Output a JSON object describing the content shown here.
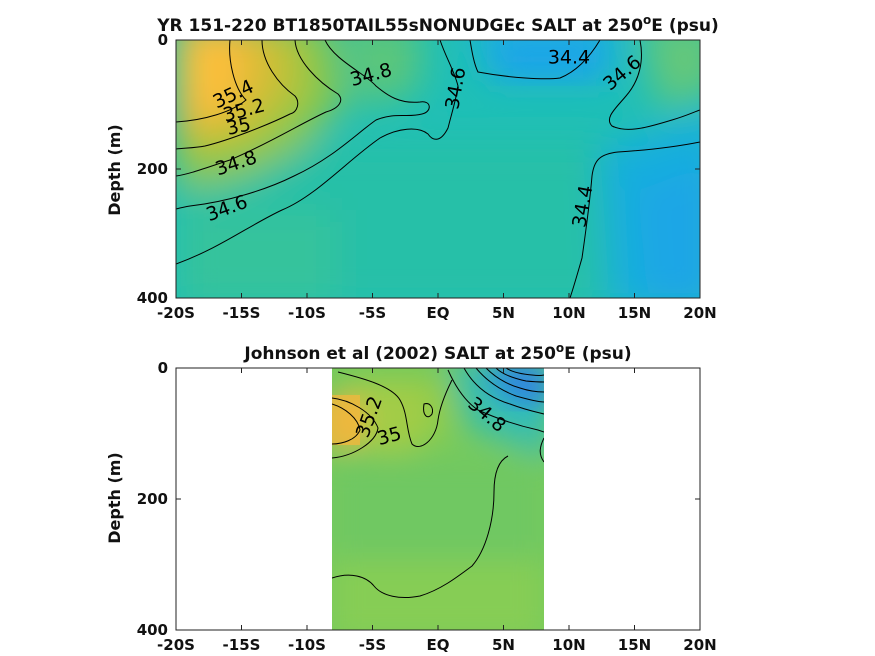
{
  "chart_data": [
    {
      "type": "heatmap",
      "title_main": "YR 151-220 BT1850TAIL55sNONUDGEc SALT at 250",
      "title_sup": "o",
      "title_tail": "E (psu)",
      "ylabel": "Depth (m)",
      "xlim": [
        -20,
        20
      ],
      "ylim": [
        0,
        400
      ],
      "y_reversed": true,
      "x_ticks": [
        -20,
        -15,
        -10,
        -5,
        0,
        5,
        10,
        15,
        20
      ],
      "x_tick_labels": [
        "-20S",
        "-15S",
        "-10S",
        "-5S",
        "EQ",
        "5N",
        "10N",
        "15N",
        "20N"
      ],
      "y_ticks": [
        0,
        200,
        400
      ],
      "y_tick_labels": [
        "0",
        "200",
        "400"
      ],
      "contour_labels": [
        {
          "text": "35.4",
          "lat": -15.6,
          "depth": 85
        },
        {
          "text": "35.2",
          "lat": -14.8,
          "depth": 110
        },
        {
          "text": "35",
          "lat": -15.2,
          "depth": 135
        },
        {
          "text": "34.8",
          "lat": -15.4,
          "depth": 192
        },
        {
          "text": "34.6",
          "lat": -16.1,
          "depth": 262
        },
        {
          "text": "34.8",
          "lat": -5.1,
          "depth": 55
        },
        {
          "text": "34.6",
          "lat": 1.4,
          "depth": 75
        },
        {
          "text": "34.4",
          "lat": 10.0,
          "depth": 28
        },
        {
          "text": "34.6",
          "lat": 14.1,
          "depth": 52
        },
        {
          "text": "34.4",
          "lat": 11.1,
          "depth": 258
        }
      ]
    },
    {
      "type": "heatmap",
      "title_main": "Johnson et al (2002) SALT at 250",
      "title_sup": "o",
      "title_tail": "E (psu)",
      "ylabel": "Depth (m)",
      "xlim": [
        -20,
        20
      ],
      "ylim": [
        0,
        400
      ],
      "y_reversed": true,
      "data_lat_range": [
        -8,
        8
      ],
      "x_ticks": [
        -20,
        -15,
        -10,
        -5,
        0,
        5,
        10,
        15,
        20
      ],
      "x_tick_labels": [
        "-20S",
        "-15S",
        "-10S",
        "-5S",
        "EQ",
        "5N",
        "10N",
        "15N",
        "20N"
      ],
      "y_ticks": [
        0,
        200,
        400
      ],
      "y_tick_labels": [
        "0",
        "200",
        "400"
      ],
      "contour_labels": [
        {
          "text": "35.2",
          "lat": -5.2,
          "depth": 75
        },
        {
          "text": "35",
          "lat": -3.7,
          "depth": 105
        },
        {
          "text": "34.8",
          "lat": 3.7,
          "depth": 72
        }
      ]
    }
  ]
}
